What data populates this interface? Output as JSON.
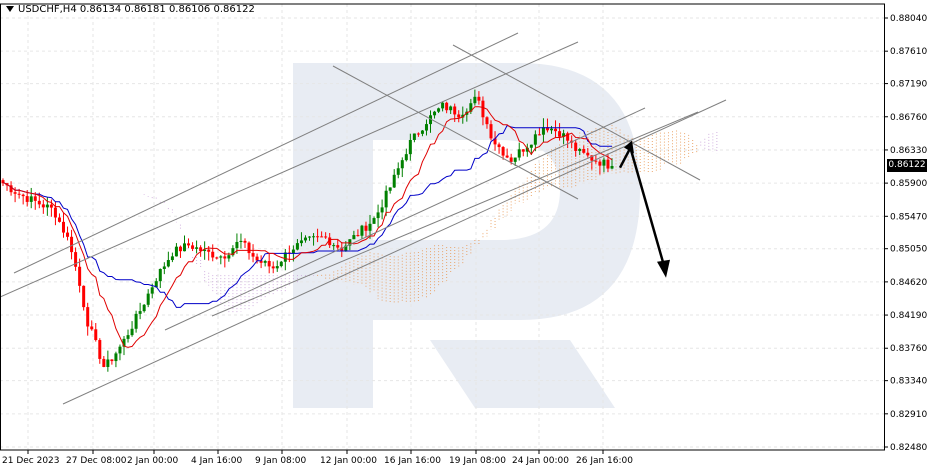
{
  "header": {
    "symbol": "USDCHF,H4",
    "ohlc": "0.86134 0.86181 0.86106 0.86122"
  },
  "current_price_label": "0.86122",
  "colors": {
    "bull_candle": "#008000",
    "bear_candle": "#ff0000",
    "kijun": "#0000c8",
    "tenkan": "#e00000",
    "cloud_bull": "#e8944c",
    "cloud_bear": "#c8a0d8",
    "trend_lines": "#808080",
    "forecast_arrow": "#000000",
    "grid": "#e6e6e6",
    "watermark": "#e8ecf3"
  },
  "chart_data": {
    "type": "candlestick",
    "title": "USDCHF,H4",
    "ylim": [
      0.8248,
      0.8804
    ],
    "y_ticks": [
      "0.88040",
      "0.87610",
      "0.87190",
      "0.86760",
      "0.86330",
      "0.85900",
      "0.85470",
      "0.85050",
      "0.84620",
      "0.84190",
      "0.83760",
      "0.83340",
      "0.82910",
      "0.82480"
    ],
    "x_ticks": [
      "21 Dec 2023",
      "27 Dec 08:00",
      "2 Jan 00:00",
      "4 Jan 16:00",
      "9 Jan 08:00",
      "12 Jan 00:00",
      "16 Jan 16:00",
      "19 Jan 08:00",
      "24 Jan 00:00",
      "26 Jan 16:00"
    ],
    "grid": true,
    "indicators": [
      "Ichimoku Kinko Hyo"
    ],
    "close_path": [
      0.859,
      0.8575,
      0.8565,
      0.8555,
      0.851,
      0.841,
      0.835,
      0.838,
      0.842,
      0.8465,
      0.85,
      0.851,
      0.85,
      0.8495,
      0.8515,
      0.849,
      0.848,
      0.8505,
      0.8515,
      0.852,
      0.8505,
      0.8525,
      0.8545,
      0.859,
      0.864,
      0.867,
      0.869,
      0.868,
      0.87,
      0.8645,
      0.862,
      0.864,
      0.8665,
      0.8655,
      0.863,
      0.862,
      0.8612
    ],
    "current_price": 0.86122,
    "forecast": {
      "from": 0.864,
      "to": 0.847,
      "direction": "down"
    }
  }
}
